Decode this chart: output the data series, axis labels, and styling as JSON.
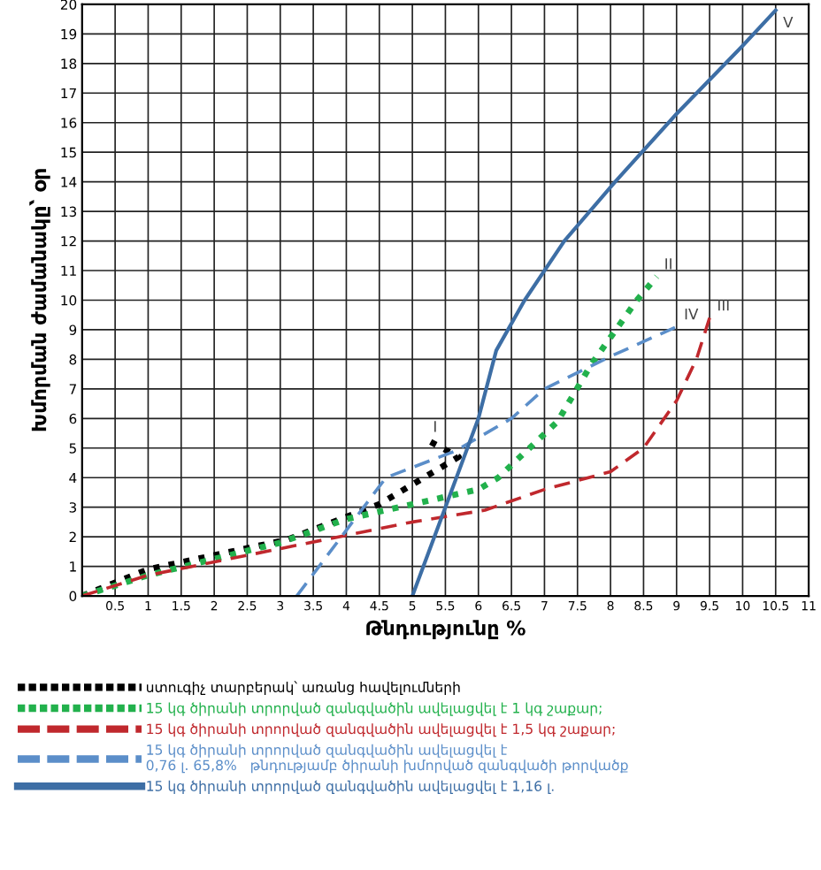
{
  "chart_data": {
    "type": "line",
    "xlabel": "Թնդությունը %",
    "ylabel": "Խմորման ժամանակը՝ օր",
    "xlim": [
      0,
      11
    ],
    "xticks": [
      0.5,
      1,
      1.5,
      2,
      2.5,
      3,
      3.5,
      4,
      4.5,
      5,
      5.5,
      6,
      6.5,
      7,
      7.5,
      8,
      8.5,
      9,
      9.5,
      10,
      10.5,
      11
    ],
    "ylim": [
      0,
      20
    ],
    "yticks": [
      0,
      1,
      2,
      3,
      4,
      5,
      6,
      7,
      8,
      9,
      10,
      11,
      12,
      13,
      14,
      15,
      16,
      17,
      18,
      19,
      20
    ],
    "grid": true,
    "legend": "bottom",
    "series": [
      {
        "name": "ստուգիչ տարբերակ՝ առանց հավելումների",
        "color": "#000000",
        "line_style": "dotted",
        "x": [
          0,
          1,
          3.1,
          4.5,
          5.7,
          5.2
        ],
        "values": [
          0,
          0.9,
          1.9,
          3.1,
          4.7,
          5.3
        ]
      },
      {
        "name": "15 կգ ծիրանի տրորված զանգվածին ավելացվել է 1 կգ շաքար;",
        "color": "#22b14c",
        "line_style": "dotted",
        "x": [
          0,
          1,
          3,
          4,
          5,
          6,
          6.3,
          7.2,
          7.7,
          8.4,
          8.7
        ],
        "values": [
          0,
          0.7,
          1.8,
          2.6,
          3.1,
          3.6,
          4.0,
          5.9,
          7.8,
          10,
          10.8
        ]
      },
      {
        "name": "15 կգ ծիրանի տրորված զանգվածին ավելացվել է 1,5 կգ շաքար;",
        "color": "#c0282d",
        "line_style": "dashed",
        "x": [
          0,
          1,
          3,
          5,
          6.1,
          7,
          8,
          8.5,
          9,
          9.3,
          9.5
        ],
        "values": [
          0,
          0.7,
          1.6,
          2.5,
          2.9,
          3.6,
          4.2,
          5.0,
          6.6,
          8,
          9.4
        ]
      },
      {
        "name": "15 կգ ծիրանի տրորված զանգվածին ավելացվել է\n0,76 լ. 65,8%   թնդությամբ ծիրանի խմորված զանգվածի թորվածք",
        "color": "#5b8ec9",
        "line_style": "dashed",
        "x": [
          3.25,
          4.6,
          5.65,
          6.5,
          7.0,
          8,
          9
        ],
        "values": [
          0,
          4.0,
          4.9,
          6.0,
          7.0,
          8.1,
          9.1
        ]
      },
      {
        "name": "15 կգ ծիրանի տրորված զանգվածին ավելացվել է 1,16 լ.",
        "color": "#3d6ea5",
        "line_style": "solid",
        "x": [
          5,
          5.5,
          6,
          6.27,
          6.7,
          7.3,
          8.07,
          9,
          10,
          10.5
        ],
        "values": [
          0,
          3.0,
          6.0,
          8.3,
          10,
          12,
          14.0,
          16.3,
          18.6,
          19.8
        ]
      }
    ],
    "annotations": [
      {
        "text": "I",
        "x": 5.2,
        "y": 5.3
      },
      {
        "text": "II",
        "x": 8.7,
        "y": 10.8
      },
      {
        "text": "III",
        "x": 9.5,
        "y": 9.4
      },
      {
        "text": "IV",
        "x": 9,
        "y": 9.1
      },
      {
        "text": "V",
        "x": 10.5,
        "y": 19.8
      }
    ]
  }
}
